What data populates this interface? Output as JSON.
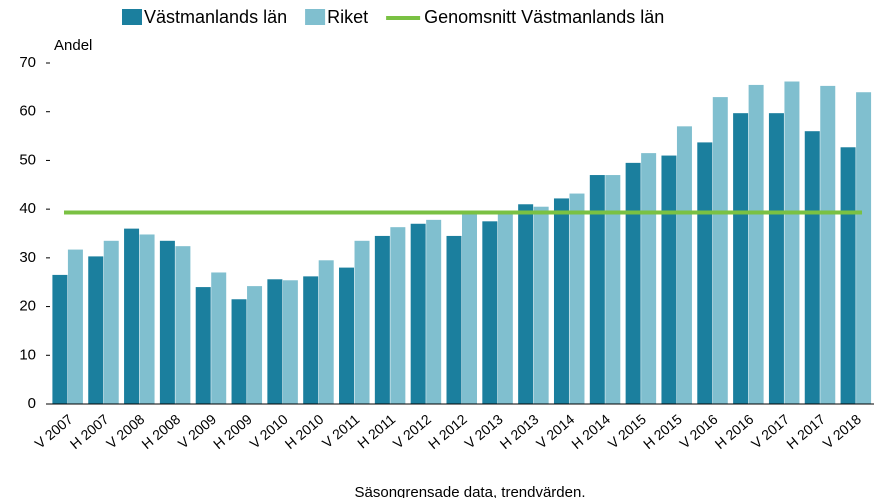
{
  "chart_data": {
    "type": "bar",
    "y_label": "Andel",
    "x_label": "Säsongrensade data, trendvärden.",
    "categories": [
      "V 2007",
      "H 2007",
      "V 2008",
      "H 2008",
      "V 2009",
      "H 2009",
      "V 2010",
      "H 2010",
      "V 2011",
      "H 2011",
      "V 2012",
      "H 2012",
      "V 2013",
      "H 2013",
      "V 2014",
      "H 2014",
      "V 2015",
      "H 2015",
      "V 2016",
      "H 2016",
      "V 2017",
      "H 2017",
      "V 2018"
    ],
    "series": [
      {
        "name": "Västmanlands län",
        "color": "#1b7f9e",
        "values": [
          26.5,
          30.3,
          36,
          33.5,
          24,
          21.5,
          25.6,
          26.2,
          28,
          34.5,
          37,
          34.5,
          37.5,
          41,
          42.2,
          47,
          49.5,
          51,
          53.7,
          59.7,
          59.7,
          56,
          52.7
        ]
      },
      {
        "name": "Riket",
        "color": "#80bfcf",
        "values": [
          31.7,
          33.5,
          34.8,
          32.4,
          27,
          24.2,
          25.4,
          29.5,
          33.5,
          36.3,
          37.8,
          39.5,
          39.5,
          40.5,
          43.2,
          47,
          51.5,
          57,
          63,
          65.5,
          66.2,
          65.3,
          64
        ]
      }
    ],
    "average": {
      "name": "Genomsnitt Västmanlands län",
      "color": "#7ac143",
      "value": 39.3
    },
    "ylim": [
      0,
      70
    ],
    "yticks": [
      0,
      10,
      20,
      30,
      40,
      50,
      60,
      70
    ]
  }
}
